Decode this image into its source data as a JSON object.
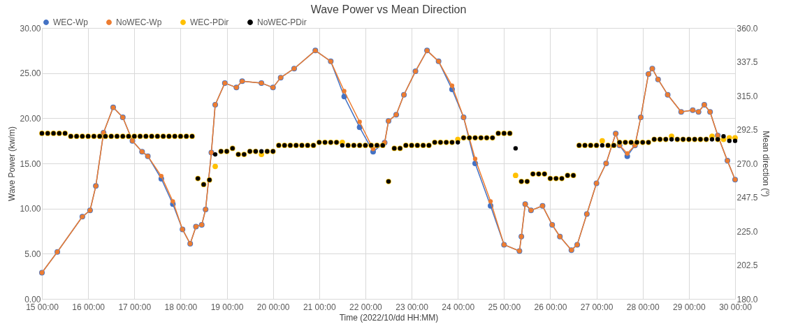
{
  "chart_data": {
    "type": "line",
    "title": "Wave Power vs Mean Direction",
    "xlabel": "Time (2022/10/dd HH:MM)",
    "ylabel": "Wave Power (kw/m)",
    "y2label": "Mean direction (º)",
    "x": [
      "2022-10-15T00:00",
      "2022-10-15T08:00",
      "2022-10-15T21:00",
      "2022-10-16T01:00",
      "2022-10-16T04:00",
      "2022-10-16T08:00",
      "2022-10-16T13:00",
      "2022-10-16T18:00",
      "2022-10-16T23:00",
      "2022-10-17T04:00",
      "2022-10-17T07:00",
      "2022-10-17T14:00",
      "2022-10-17T20:00",
      "2022-10-18T01:00",
      "2022-10-18T05:00",
      "2022-10-18T08:00",
      "2022-10-18T11:00",
      "2022-10-18T13:00",
      "2022-10-18T16:00",
      "2022-10-18T18:00",
      "2022-10-18T23:00",
      "2022-10-19T05:00",
      "2022-10-19T08:00",
      "2022-10-19T18:00",
      "2022-10-20T00:00",
      "2022-10-20T04:00",
      "2022-10-20T11:00",
      "2022-10-20T22:00",
      "2022-10-21T06:00",
      "2022-10-21T13:00",
      "2022-10-21T21:00",
      "2022-10-22T04:00",
      "2022-10-22T10:00",
      "2022-10-22T12:00",
      "2022-10-22T16:00",
      "2022-10-22T20:00",
      "2022-10-23T02:00",
      "2022-10-23T08:00",
      "2022-10-23T14:00",
      "2022-10-23T21:00",
      "2022-10-24T03:00",
      "2022-10-24T09:00",
      "2022-10-24T17:00",
      "2022-10-25T00:00",
      "2022-10-25T08:00",
      "2022-10-25T09:00",
      "2022-10-25T11:00",
      "2022-10-25T14:00",
      "2022-10-25T20:00",
      "2022-10-26T01:00",
      "2022-10-26T05:00",
      "2022-10-26T11:00",
      "2022-10-26T14:00",
      "2022-10-26T19:00",
      "2022-10-27T00:00",
      "2022-10-27T05:00",
      "2022-10-27T10:00",
      "2022-10-27T12:00",
      "2022-10-27T16:00",
      "2022-10-27T20:00",
      "2022-10-27T23:00",
      "2022-10-28T03:00",
      "2022-10-28T05:00",
      "2022-10-28T08:00",
      "2022-10-28T13:00",
      "2022-10-28T20:00",
      "2022-10-29T02:00",
      "2022-10-29T05:00",
      "2022-10-29T08:00",
      "2022-10-29T11:00",
      "2022-10-29T15:00",
      "2022-10-29T20:00",
      "2022-10-30T00:00"
    ],
    "series": [
      {
        "name": "WEC-Wp",
        "color": "#4472c4",
        "values": [
          2.9,
          5.2,
          9.1,
          9.8,
          12.5,
          18.4,
          21.2,
          20.1,
          17.5,
          16.3,
          15.8,
          13.3,
          10.5,
          7.7,
          6.1,
          8.0,
          8.2,
          9.9,
          16.2,
          21.5,
          23.9,
          23.4,
          24.1,
          23.9,
          23.4,
          24.5,
          25.5,
          27.5,
          26.3,
          22.4,
          19.0,
          16.3,
          17.3,
          19.7,
          20.4,
          22.6,
          25.2,
          27.5,
          26.3,
          23.2,
          20.1,
          15.0,
          10.3,
          6.0,
          5.3,
          6.9,
          10.5,
          9.8,
          10.3,
          8.2,
          6.9,
          5.4,
          6.0,
          9.4,
          12.8,
          15.0,
          18.3,
          17.0,
          15.8,
          17.0,
          20.1,
          24.9,
          25.5,
          24.3,
          22.6,
          20.7,
          20.9,
          20.7,
          21.5,
          20.7,
          18.1,
          15.3,
          13.2
        ]
      },
      {
        "name": "NoWEC-Wp",
        "color": "#ed7d31",
        "values": [
          2.9,
          5.2,
          9.1,
          9.8,
          12.5,
          18.4,
          21.2,
          20.1,
          17.5,
          16.3,
          15.8,
          13.6,
          10.8,
          7.7,
          6.1,
          8.0,
          8.2,
          9.9,
          16.2,
          21.5,
          23.9,
          23.4,
          24.1,
          23.9,
          23.4,
          24.5,
          25.5,
          27.5,
          26.3,
          23.0,
          19.6,
          16.6,
          17.3,
          19.7,
          20.4,
          22.6,
          25.2,
          27.5,
          26.3,
          23.6,
          20.1,
          15.5,
          10.8,
          6.0,
          5.3,
          6.9,
          10.5,
          9.8,
          10.3,
          8.2,
          6.9,
          5.4,
          6.0,
          9.4,
          12.8,
          15.0,
          18.3,
          17.0,
          16.1,
          17.0,
          20.1,
          24.9,
          25.5,
          24.3,
          22.6,
          20.7,
          20.9,
          20.7,
          21.5,
          20.7,
          18.1,
          15.3,
          13.2
        ]
      },
      {
        "name": "WEC-PDir",
        "color": "#ffc000",
        "type": "scatter",
        "axis": "y2",
        "x": [
          "2022-10-15T00:00",
          "2022-10-15T03:00",
          "2022-10-15T06:00",
          "2022-10-15T09:00",
          "2022-10-15T12:00",
          "2022-10-15T15:00",
          "2022-10-15T18:00",
          "2022-10-15T21:00",
          "2022-10-16T00:00",
          "2022-10-16T03:00",
          "2022-10-16T06:00",
          "2022-10-16T09:00",
          "2022-10-16T12:00",
          "2022-10-16T15:00",
          "2022-10-16T18:00",
          "2022-10-16T21:00",
          "2022-10-17T00:00",
          "2022-10-17T03:00",
          "2022-10-17T06:00",
          "2022-10-17T09:00",
          "2022-10-17T12:00",
          "2022-10-17T15:00",
          "2022-10-17T18:00",
          "2022-10-17T21:00",
          "2022-10-18T00:00",
          "2022-10-18T03:00",
          "2022-10-18T06:00",
          "2022-10-18T09:00",
          "2022-10-18T12:00",
          "2022-10-18T15:00",
          "2022-10-18T18:00",
          "2022-10-18T21:00",
          "2022-10-19T00:00",
          "2022-10-19T03:00",
          "2022-10-19T06:00",
          "2022-10-19T09:00",
          "2022-10-19T12:00",
          "2022-10-19T15:00",
          "2022-10-19T18:00",
          "2022-10-19T21:00",
          "2022-10-20T00:00",
          "2022-10-20T03:00",
          "2022-10-20T06:00",
          "2022-10-20T09:00",
          "2022-10-20T12:00",
          "2022-10-20T15:00",
          "2022-10-20T18:00",
          "2022-10-20T21:00",
          "2022-10-21T00:00",
          "2022-10-21T03:00",
          "2022-10-21T06:00",
          "2022-10-21T09:00",
          "2022-10-21T12:00",
          "2022-10-21T15:00",
          "2022-10-21T18:00",
          "2022-10-21T21:00",
          "2022-10-22T00:00",
          "2022-10-22T03:00",
          "2022-10-22T06:00",
          "2022-10-22T09:00",
          "2022-10-22T12:00",
          "2022-10-22T15:00",
          "2022-10-22T18:00",
          "2022-10-22T21:00",
          "2022-10-23T00:00",
          "2022-10-23T03:00",
          "2022-10-23T06:00",
          "2022-10-23T09:00",
          "2022-10-23T12:00",
          "2022-10-23T15:00",
          "2022-10-23T18:00",
          "2022-10-23T21:00",
          "2022-10-24T00:00",
          "2022-10-24T03:00",
          "2022-10-24T06:00",
          "2022-10-24T09:00",
          "2022-10-24T12:00",
          "2022-10-24T15:00",
          "2022-10-24T18:00",
          "2022-10-24T21:00",
          "2022-10-25T00:00",
          "2022-10-25T03:00",
          "2022-10-25T06:00",
          "2022-10-25T09:00",
          "2022-10-25T12:00",
          "2022-10-25T15:00",
          "2022-10-25T18:00",
          "2022-10-25T21:00",
          "2022-10-26T00:00",
          "2022-10-26T03:00",
          "2022-10-26T06:00",
          "2022-10-26T09:00",
          "2022-10-26T12:00",
          "2022-10-26T15:00",
          "2022-10-26T18:00",
          "2022-10-26T21:00",
          "2022-10-27T00:00",
          "2022-10-27T03:00",
          "2022-10-27T06:00",
          "2022-10-27T09:00",
          "2022-10-27T12:00",
          "2022-10-27T15:00",
          "2022-10-27T18:00",
          "2022-10-27T21:00",
          "2022-10-28T00:00",
          "2022-10-28T03:00",
          "2022-10-28T06:00",
          "2022-10-28T09:00",
          "2022-10-28T12:00",
          "2022-10-28T15:00",
          "2022-10-28T18:00",
          "2022-10-28T21:00",
          "2022-10-29T00:00",
          "2022-10-29T03:00",
          "2022-10-29T06:00",
          "2022-10-29T09:00",
          "2022-10-29T12:00",
          "2022-10-29T15:00",
          "2022-10-29T18:00",
          "2022-10-29T21:00",
          "2022-10-30T00:00"
        ],
        "values": [
          290,
          290,
          290,
          290,
          290,
          288,
          288,
          288,
          288,
          288,
          288,
          288,
          288,
          288,
          288,
          288,
          288,
          288,
          288,
          288,
          288,
          288,
          288,
          288,
          288,
          288,
          288,
          260,
          256,
          259,
          268,
          278,
          278,
          280,
          276,
          276,
          278,
          278,
          276,
          278,
          278,
          282,
          282,
          282,
          282,
          282,
          282,
          282,
          284,
          284,
          284,
          284,
          284,
          282,
          282,
          282,
          282,
          282,
          282,
          282,
          258,
          280,
          280,
          282,
          282,
          282,
          282,
          282,
          284,
          284,
          284,
          284,
          286,
          287,
          287,
          287,
          287,
          287,
          287,
          290,
          290,
          290,
          262,
          258,
          258,
          263,
          263,
          263,
          260,
          260,
          260,
          262,
          262,
          282,
          282,
          282,
          282,
          285,
          282,
          282,
          284,
          284,
          284,
          284,
          284,
          284,
          286,
          286,
          286,
          288,
          286,
          286,
          286,
          286,
          286,
          286,
          288,
          286,
          286,
          287,
          287
        ]
      },
      {
        "name": "NoWEC-PDir",
        "color": "#000000",
        "type": "scatter",
        "axis": "y2",
        "x": [
          "2022-10-15T00:00",
          "2022-10-15T03:00",
          "2022-10-15T06:00",
          "2022-10-15T09:00",
          "2022-10-15T12:00",
          "2022-10-15T15:00",
          "2022-10-15T18:00",
          "2022-10-15T21:00",
          "2022-10-16T00:00",
          "2022-10-16T03:00",
          "2022-10-16T06:00",
          "2022-10-16T09:00",
          "2022-10-16T12:00",
          "2022-10-16T15:00",
          "2022-10-16T18:00",
          "2022-10-16T21:00",
          "2022-10-17T00:00",
          "2022-10-17T03:00",
          "2022-10-17T06:00",
          "2022-10-17T09:00",
          "2022-10-17T12:00",
          "2022-10-17T15:00",
          "2022-10-17T18:00",
          "2022-10-17T21:00",
          "2022-10-18T00:00",
          "2022-10-18T03:00",
          "2022-10-18T06:00",
          "2022-10-18T09:00",
          "2022-10-18T12:00",
          "2022-10-18T15:00",
          "2022-10-18T18:00",
          "2022-10-18T21:00",
          "2022-10-19T00:00",
          "2022-10-19T03:00",
          "2022-10-19T06:00",
          "2022-10-19T09:00",
          "2022-10-19T12:00",
          "2022-10-19T15:00",
          "2022-10-19T18:00",
          "2022-10-19T21:00",
          "2022-10-20T00:00",
          "2022-10-20T03:00",
          "2022-10-20T06:00",
          "2022-10-20T09:00",
          "2022-10-20T12:00",
          "2022-10-20T15:00",
          "2022-10-20T18:00",
          "2022-10-20T21:00",
          "2022-10-21T00:00",
          "2022-10-21T03:00",
          "2022-10-21T06:00",
          "2022-10-21T09:00",
          "2022-10-21T12:00",
          "2022-10-21T15:00",
          "2022-10-21T18:00",
          "2022-10-21T21:00",
          "2022-10-22T00:00",
          "2022-10-22T03:00",
          "2022-10-22T06:00",
          "2022-10-22T09:00",
          "2022-10-22T12:00",
          "2022-10-22T15:00",
          "2022-10-22T18:00",
          "2022-10-22T21:00",
          "2022-10-23T00:00",
          "2022-10-23T03:00",
          "2022-10-23T06:00",
          "2022-10-23T09:00",
          "2022-10-23T12:00",
          "2022-10-23T15:00",
          "2022-10-23T18:00",
          "2022-10-23T21:00",
          "2022-10-24T00:00",
          "2022-10-24T03:00",
          "2022-10-24T06:00",
          "2022-10-24T09:00",
          "2022-10-24T12:00",
          "2022-10-24T15:00",
          "2022-10-24T18:00",
          "2022-10-24T21:00",
          "2022-10-25T00:00",
          "2022-10-25T03:00",
          "2022-10-25T06:00",
          "2022-10-25T09:00",
          "2022-10-25T12:00",
          "2022-10-25T15:00",
          "2022-10-25T18:00",
          "2022-10-25T21:00",
          "2022-10-26T00:00",
          "2022-10-26T03:00",
          "2022-10-26T06:00",
          "2022-10-26T09:00",
          "2022-10-26T12:00",
          "2022-10-26T15:00",
          "2022-10-26T18:00",
          "2022-10-26T21:00",
          "2022-10-27T00:00",
          "2022-10-27T03:00",
          "2022-10-27T06:00",
          "2022-10-27T09:00",
          "2022-10-27T12:00",
          "2022-10-27T15:00",
          "2022-10-27T18:00",
          "2022-10-27T21:00",
          "2022-10-28T00:00",
          "2022-10-28T03:00",
          "2022-10-28T06:00",
          "2022-10-28T09:00",
          "2022-10-28T12:00",
          "2022-10-28T15:00",
          "2022-10-28T18:00",
          "2022-10-28T21:00",
          "2022-10-29T00:00",
          "2022-10-29T03:00",
          "2022-10-29T06:00",
          "2022-10-29T09:00",
          "2022-10-29T12:00",
          "2022-10-29T15:00",
          "2022-10-29T18:00",
          "2022-10-29T21:00",
          "2022-10-30T00:00"
        ],
        "values": [
          290,
          290,
          290,
          290,
          290,
          288,
          288,
          288,
          288,
          288,
          288,
          288,
          288,
          288,
          288,
          288,
          288,
          288,
          288,
          288,
          288,
          288,
          288,
          288,
          288,
          288,
          288,
          260,
          256,
          259,
          276,
          278,
          278,
          280,
          276,
          276,
          278,
          278,
          278,
          278,
          278,
          282,
          282,
          282,
          282,
          282,
          282,
          282,
          284,
          284,
          284,
          284,
          282,
          282,
          282,
          282,
          282,
          282,
          282,
          282,
          258,
          280,
          280,
          282,
          282,
          282,
          282,
          282,
          284,
          284,
          284,
          284,
          284,
          287,
          287,
          287,
          287,
          287,
          287,
          290,
          290,
          290,
          280,
          258,
          258,
          263,
          263,
          263,
          260,
          260,
          260,
          262,
          262,
          282,
          282,
          282,
          282,
          282,
          282,
          282,
          284,
          284,
          284,
          284,
          284,
          284,
          286,
          286,
          286,
          286,
          286,
          286,
          286,
          286,
          286,
          286,
          286,
          286,
          288,
          285,
          285
        ]
      }
    ],
    "xlim": [
      "2022-10-15T00:00",
      "2022-10-30T00:00"
    ],
    "xticks": [
      {
        "value": "2022-10-15T00:00",
        "label": "15 00:00"
      },
      {
        "value": "2022-10-16T00:00",
        "label": "16 00:00"
      },
      {
        "value": "2022-10-17T00:00",
        "label": "17 00:00"
      },
      {
        "value": "2022-10-18T00:00",
        "label": "18 00:00"
      },
      {
        "value": "2022-10-19T00:00",
        "label": "19 00:00"
      },
      {
        "value": "2022-10-20T00:00",
        "label": "20 00:00"
      },
      {
        "value": "2022-10-21T00:00",
        "label": "21 00:00"
      },
      {
        "value": "2022-10-22T00:00",
        "label": "22 00:00"
      },
      {
        "value": "2022-10-23T00:00",
        "label": "23 00:00"
      },
      {
        "value": "2022-10-24T00:00",
        "label": "24 00:00"
      },
      {
        "value": "2022-10-25T00:00",
        "label": "25 00:00"
      },
      {
        "value": "2022-10-26T00:00",
        "label": "26 00:00"
      },
      {
        "value": "2022-10-27T00:00",
        "label": "27 00:00"
      },
      {
        "value": "2022-10-28T00:00",
        "label": "28 00:00"
      },
      {
        "value": "2022-10-29T00:00",
        "label": "29 00:00"
      },
      {
        "value": "2022-10-30T00:00",
        "label": "30 00:00"
      }
    ],
    "ylim": [
      0,
      30
    ],
    "yticks": [
      {
        "value": 0,
        "label": "0.00"
      },
      {
        "value": 5,
        "label": "5.00"
      },
      {
        "value": 10,
        "label": "10.00"
      },
      {
        "value": 15,
        "label": "15.00"
      },
      {
        "value": 20,
        "label": "20.00"
      },
      {
        "value": 25,
        "label": "25.00"
      },
      {
        "value": 30,
        "label": "30.00"
      }
    ],
    "y2lim": [
      180,
      360
    ],
    "y2ticks": [
      {
        "value": 180,
        "label": "180.0"
      },
      {
        "value": 202.5,
        "label": "202.5"
      },
      {
        "value": 225,
        "label": "225.0"
      },
      {
        "value": 247.5,
        "label": "247.5"
      },
      {
        "value": 270,
        "label": "270.0"
      },
      {
        "value": 292.5,
        "label": "292.5"
      },
      {
        "value": 315,
        "label": "315.0"
      },
      {
        "value": 337.5,
        "label": "337.5"
      },
      {
        "value": 360,
        "label": "360.0"
      }
    ],
    "grid": true,
    "legend": "top",
    "marker": "circle",
    "line_style": "solid"
  }
}
